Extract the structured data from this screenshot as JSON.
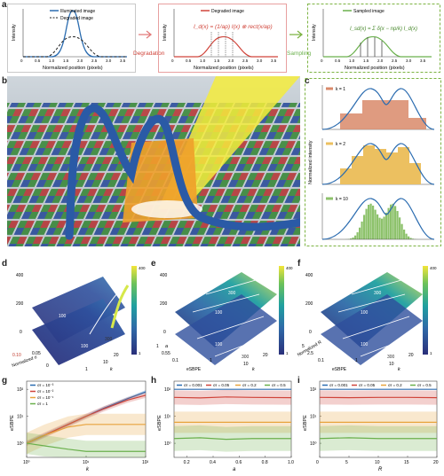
{
  "colors": {
    "blue": "#2b6cb0",
    "red": "#d0443a",
    "green": "#6ab04c",
    "orange": "#e8a33c",
    "yellow": "#e9d84a",
    "dashed_green": "#7cb342",
    "pink_arrow": "#e27b7b",
    "c1_bar": "#d98a6a",
    "c2_bar": "#ecc060",
    "c3_bar": "#8dc26b"
  },
  "panel_a": {
    "letter": "a",
    "sub1": {
      "legend_illuminated": "Illuminated image",
      "legend_degraded": "Degraded image",
      "ylabel": "Intensity",
      "xlabel": "Normalized position (pixels)",
      "ticks": [
        "0",
        "0.5",
        "1.0",
        "1.5",
        "2.0",
        "2.5",
        "3.0",
        "3.5"
      ]
    },
    "arrow1": "Degradation",
    "sub2": {
      "legend_degraded": "Degraded image",
      "ylabel": "Intensity",
      "xlabel": "Normalized position (pixels)",
      "formula": "I_d(x) = (1/ap) I(x) ⊗ rect(x/ap)",
      "ticks": [
        "0",
        "0.5",
        "1.0",
        "1.5",
        "2.0",
        "2.5",
        "3.0",
        "3.5"
      ]
    },
    "arrow2": "Sampling",
    "sub3": {
      "legend_sampled": "Sampled image",
      "ylabel": "Intensity",
      "xlabel": "Normalized position (pixels)",
      "formula": "I_sd(x) = Σ δ(x − np/k) I_d(x)",
      "ticks": [
        "0",
        "0.5",
        "1.0",
        "1.5",
        "2.0",
        "2.5",
        "3.0",
        "3.5"
      ]
    }
  },
  "panel_b": {
    "letter": "b"
  },
  "panel_c": {
    "letter": "c",
    "ylabel": "Normalized intensity",
    "legend": [
      "k = 1",
      "k = 2",
      "k = 10"
    ]
  },
  "panel_d": {
    "letter": "d",
    "z_ticks": [
      "0",
      "200",
      "400"
    ],
    "contours": [
      "100",
      "100",
      "300"
    ],
    "ylabel": "Normalized σ",
    "y_ticks": [
      "0.10",
      "0.05",
      "0"
    ],
    "xlabel": "k",
    "x_ticks": [
      "1",
      "10",
      "20"
    ],
    "cbar_ticks": [
      "400",
      "300",
      "200",
      "100",
      "1"
    ]
  },
  "panel_e": {
    "letter": "e",
    "z_ticks": [
      "0",
      "200",
      "400"
    ],
    "contours": [
      "300",
      "100",
      "100",
      "300"
    ],
    "ylabel": "a",
    "y_ticks": [
      "1",
      "0.55",
      "0.1"
    ],
    "xlabel": "eSBPE",
    "x_ticks": [
      "0.1",
      "1"
    ],
    "klabel": "k",
    "k_ticks": [
      "10",
      "20"
    ],
    "cbar_ticks": [
      "400",
      "300",
      "200",
      "100",
      "1"
    ]
  },
  "panel_f": {
    "letter": "f",
    "z_ticks": [
      "0",
      "200",
      "400"
    ],
    "contours": [
      "300",
      "100",
      "100",
      "300"
    ],
    "ylabel": "Normalized R",
    "y_ticks": [
      "5",
      "2.5",
      "0.1"
    ],
    "xlabel": "eSBPE",
    "x_ticks": [
      "0.1",
      "1"
    ],
    "klabel": "k",
    "k_ticks": [
      "10",
      "20"
    ],
    "cbar_ticks": [
      "400",
      "300",
      "200",
      "100",
      "1"
    ]
  },
  "chart_data": [
    {
      "type": "line",
      "panel": "g",
      "ylabel": "eSBPE",
      "xlabel": "k",
      "x_ticks": [
        "10⁰",
        "10¹",
        "10²"
      ],
      "y_ticks": [
        "10⁰",
        "10¹",
        "10²"
      ],
      "x_scale": "log",
      "y_scale": "log",
      "legend_placement": "top-left",
      "series": [
        {
          "name": "σr = 10⁻³",
          "color": "#2b6cb0",
          "x": [
            1,
            2,
            5,
            10,
            20,
            50,
            100
          ],
          "y": [
            1,
            2,
            5,
            10,
            20,
            45,
            80
          ]
        },
        {
          "name": "σr = 10⁻²",
          "color": "#d0443a",
          "x": [
            1,
            2,
            5,
            10,
            20,
            50,
            100
          ],
          "y": [
            1,
            2,
            5,
            10,
            19,
            40,
            60
          ]
        },
        {
          "name": "σr = 10⁻¹",
          "color": "#e8a33c",
          "x": [
            1,
            2,
            5,
            10,
            20,
            50,
            100
          ],
          "y": [
            1,
            2,
            4,
            5,
            5,
            5,
            5
          ]
        },
        {
          "name": "σr = 1",
          "color": "#6ab04c",
          "x": [
            1,
            2,
            5,
            10,
            20,
            50,
            100
          ],
          "y": [
            1,
            0.8,
            0.6,
            0.5,
            0.5,
            0.5,
            0.5
          ]
        }
      ]
    },
    {
      "type": "line",
      "panel": "h",
      "ylabel": "eSBPE",
      "xlabel": "a",
      "x_ticks": [
        "0.2",
        "0.4",
        "0.6",
        "0.8",
        "1.0"
      ],
      "y_ticks": [
        "10⁰",
        "10¹",
        "10²"
      ],
      "y_scale": "log",
      "legend_placement": "top",
      "series": [
        {
          "name": "σr = 0.001",
          "color": "#2b6cb0",
          "x": [
            0.1,
            0.3,
            0.5,
            0.7,
            1.0
          ],
          "y": [
            100,
            100,
            100,
            100,
            100
          ]
        },
        {
          "name": "σr = 0.05",
          "color": "#d0443a",
          "x": [
            0.1,
            0.3,
            0.5,
            0.7,
            1.0
          ],
          "y": [
            50,
            48,
            52,
            50,
            49
          ]
        },
        {
          "name": "σr = 0.2",
          "color": "#e8a33c",
          "x": [
            0.1,
            0.3,
            0.5,
            0.7,
            1.0
          ],
          "y": [
            6,
            6,
            6,
            6,
            6
          ]
        },
        {
          "name": "σr = 0.5",
          "color": "#6ab04c",
          "x": [
            0.1,
            0.3,
            0.5,
            0.7,
            1.0
          ],
          "y": [
            1.5,
            1.6,
            1.4,
            1.5,
            1.5
          ]
        }
      ]
    },
    {
      "type": "line",
      "panel": "i",
      "ylabel": "eSBPE",
      "xlabel": "R",
      "x_ticks": [
        "0",
        "5",
        "10",
        "15",
        "20"
      ],
      "y_ticks": [
        "10⁰",
        "10¹",
        "10²"
      ],
      "y_scale": "log",
      "legend_placement": "top",
      "series": [
        {
          "name": "σr = 0.001",
          "color": "#2b6cb0",
          "x": [
            0,
            5,
            10,
            15,
            20
          ],
          "y": [
            100,
            100,
            100,
            100,
            100
          ]
        },
        {
          "name": "σr = 0.05",
          "color": "#d0443a",
          "x": [
            0,
            5,
            10,
            15,
            20
          ],
          "y": [
            50,
            49,
            50,
            50,
            49
          ]
        },
        {
          "name": "σr = 0.2",
          "color": "#e8a33c",
          "x": [
            0,
            5,
            10,
            15,
            20
          ],
          "y": [
            6,
            6,
            6,
            6,
            6
          ]
        },
        {
          "name": "σr = 0.5",
          "color": "#6ab04c",
          "x": [
            0,
            5,
            10,
            15,
            20
          ],
          "y": [
            1.5,
            1.6,
            1.5,
            1.5,
            1.5
          ]
        }
      ]
    }
  ]
}
